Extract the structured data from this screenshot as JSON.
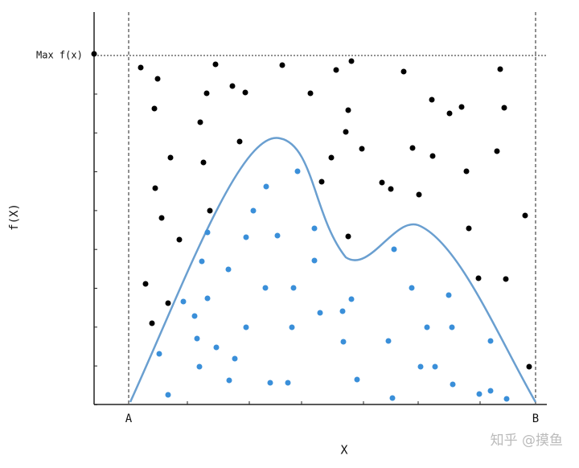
{
  "labels": {
    "max": "Max f(x)",
    "y_axis": "f(X)",
    "x_axis": "X",
    "a": "A",
    "b": "B"
  },
  "watermark": "知乎 @摸鱼"
}
